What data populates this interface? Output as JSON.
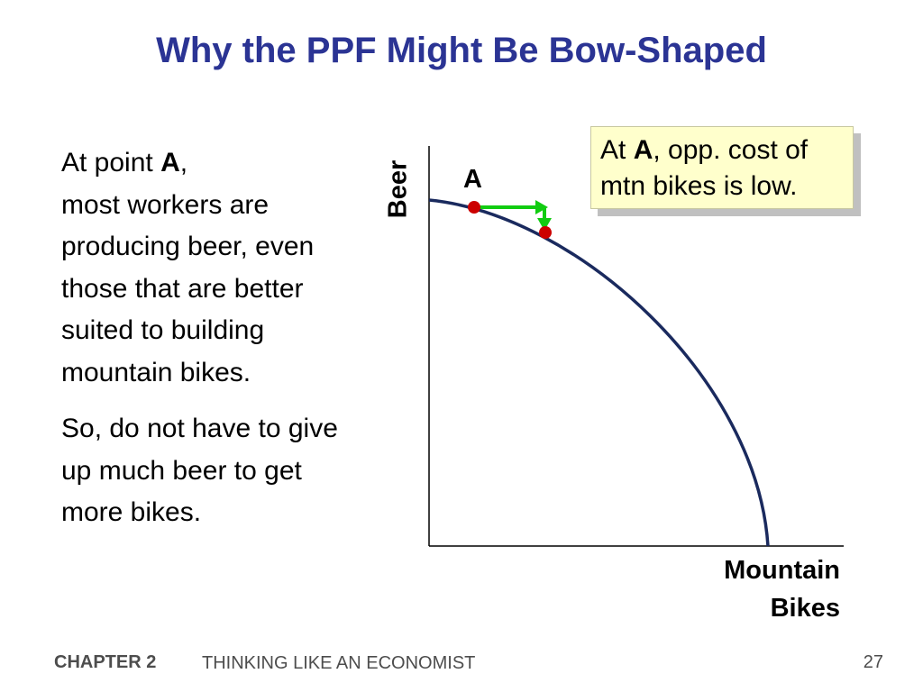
{
  "title": "Why the PPF Might Be Bow-Shaped",
  "body": {
    "para1": {
      "prefix": "At point ",
      "point": "A",
      "suffix": ",",
      "rest": "most workers are producing beer, even those that are better suited to building mountain bikes."
    },
    "para2": "So, do not have to give up much beer to get more bikes."
  },
  "callout": {
    "prefix": "At ",
    "point": "A",
    "rest": ", opp. cost of mtn bikes is low."
  },
  "diagram": {
    "y_axis_label": "Beer",
    "x_axis_label_line1": "Mountain",
    "x_axis_label_line2": "Bikes",
    "point_label": "A",
    "colors": {
      "curve": "#1a2a5e",
      "points": "#cc0000",
      "arrows": "#11cc11",
      "title": "#2b3494"
    }
  },
  "footer": {
    "chapter": "CHAPTER 2",
    "chapter_title": "THINKING LIKE AN ECONOMIST",
    "page": "27"
  }
}
